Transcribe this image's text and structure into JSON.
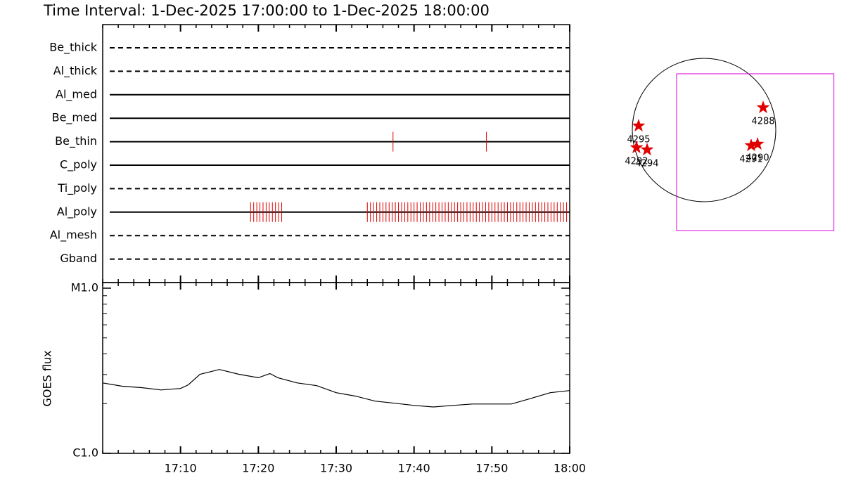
{
  "title": "Time Interval:  1-Dec-2025 17:00:00 to  1-Dec-2025 18:00:00",
  "chart_data": [
    {
      "type": "timeline",
      "xlim": [
        0,
        60
      ],
      "series": [
        {
          "name": "Be_thick",
          "style": "dashed",
          "times": []
        },
        {
          "name": "Al_thick",
          "style": "dashed",
          "times": []
        },
        {
          "name": "Al_med",
          "style": "solid",
          "times": []
        },
        {
          "name": "Be_med",
          "style": "solid",
          "times": []
        },
        {
          "name": "Be_thin",
          "style": "solid",
          "times": [
            37.3,
            49.3
          ]
        },
        {
          "name": "C_poly",
          "style": "solid",
          "times": []
        },
        {
          "name": "Ti_poly",
          "style": "dashed",
          "times": []
        },
        {
          "name": "Al_poly",
          "style": "solid",
          "times": [
            19.0,
            19.4,
            19.8,
            20.2,
            20.6,
            21.0,
            21.4,
            21.8,
            22.2,
            22.6,
            23.0,
            34.0,
            34.4,
            34.8,
            35.2,
            35.6,
            36.0,
            36.4,
            36.8,
            37.2,
            37.6,
            38.0,
            38.4,
            38.8,
            39.2,
            39.6,
            40.0,
            40.4,
            40.8,
            41.2,
            41.6,
            42.0,
            42.4,
            42.8,
            43.2,
            43.6,
            44.0,
            44.4,
            44.8,
            45.2,
            45.6,
            46.0,
            46.4,
            46.8,
            47.2,
            47.6,
            48.0,
            48.4,
            48.8,
            49.2,
            49.6,
            50.0,
            50.4,
            50.8,
            51.2,
            51.6,
            52.0,
            52.4,
            52.8,
            53.2,
            53.6,
            54.0,
            54.4,
            54.8,
            55.2,
            55.6,
            56.0,
            56.4,
            56.8,
            57.2,
            57.6,
            58.0,
            58.4,
            58.8,
            59.2,
            59.6
          ]
        },
        {
          "name": "Al_mesh",
          "style": "dashed",
          "times": []
        },
        {
          "name": "Gband",
          "style": "dashed",
          "times": []
        }
      ],
      "mark_color": "#e00000"
    },
    {
      "type": "line",
      "y_label": "GOES flux",
      "log_scale": true,
      "color": "#000000",
      "xlim": [
        0,
        60
      ],
      "xticks": [
        {
          "value": 10,
          "label": "17:10"
        },
        {
          "value": 20,
          "label": "17:20"
        },
        {
          "value": 30,
          "label": "17:30"
        },
        {
          "value": 40,
          "label": "17:40"
        },
        {
          "value": 50,
          "label": "17:50"
        },
        {
          "value": 60,
          "label": "18:00"
        }
      ],
      "ylim": [
        1e-06,
        1e-05
      ],
      "yticks": [
        {
          "value": 1e-06,
          "label": "C1.0"
        },
        {
          "value": 1e-05,
          "label": "M1.0"
        }
      ],
      "x": [
        0,
        2.5,
        5,
        7.5,
        10,
        11,
        12.5,
        15,
        17.5,
        20,
        21.5,
        22.5,
        25,
        27.5,
        30,
        32.5,
        35,
        37.5,
        40,
        42.5,
        45,
        47.5,
        50,
        52.5,
        55,
        57.5,
        60
      ],
      "values": [
        2.67e-06,
        2.55e-06,
        2.5e-06,
        2.42e-06,
        2.47e-06,
        2.6e-06,
        3.01e-06,
        3.22e-06,
        3.01e-06,
        2.87e-06,
        3.04e-06,
        2.87e-06,
        2.67e-06,
        2.57e-06,
        2.33e-06,
        2.22e-06,
        2.07e-06,
        2.01e-06,
        1.95e-06,
        1.91e-06,
        1.95e-06,
        1.99e-06,
        1.99e-06,
        1.99e-06,
        2.15e-06,
        2.33e-06,
        2.4e-06
      ]
    },
    {
      "type": "map",
      "star_color": "#e00000",
      "fov_color": "#e000e0",
      "fov": {
        "x": [
          -373,
          1765
        ],
        "y": [
          -1367,
          765
        ]
      },
      "regions": [
        {
          "label": "4295",
          "x": -889,
          "y": 57
        },
        {
          "label": "4292",
          "x": -918,
          "y": -239
        },
        {
          "label": "4294",
          "x": -774,
          "y": -268
        },
        {
          "label": "4291",
          "x": 640,
          "y": -210
        },
        {
          "label": "4290",
          "x": 727,
          "y": -191
        },
        {
          "label": "4288",
          "x": 803,
          "y": 306
        }
      ]
    }
  ]
}
